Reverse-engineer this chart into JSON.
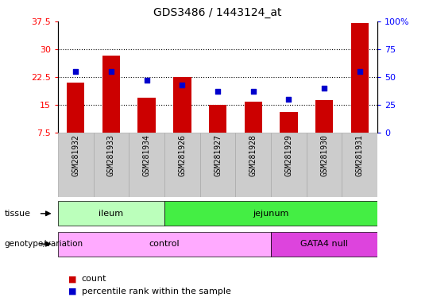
{
  "title": "GDS3486 / 1443124_at",
  "samples": [
    "GSM281932",
    "GSM281933",
    "GSM281934",
    "GSM281926",
    "GSM281927",
    "GSM281928",
    "GSM281929",
    "GSM281930",
    "GSM281931"
  ],
  "counts": [
    21.0,
    28.2,
    17.0,
    22.5,
    15.0,
    15.8,
    13.0,
    16.2,
    37.0
  ],
  "percentile_ranks": [
    55,
    55,
    47,
    43,
    37,
    37,
    30,
    40,
    55
  ],
  "ylim_left": [
    7.5,
    37.5
  ],
  "ylim_right": [
    0,
    100
  ],
  "yticks_left": [
    7.5,
    15.0,
    22.5,
    30.0,
    37.5
  ],
  "yticks_right": [
    0,
    25,
    50,
    75,
    100
  ],
  "ytick_labels_left": [
    "7.5",
    "15",
    "22.5",
    "30",
    "37.5"
  ],
  "ytick_labels_right": [
    "0",
    "25",
    "50",
    "75",
    "100%"
  ],
  "bar_color": "#cc0000",
  "dot_color": "#0000cc",
  "tissue_groups": [
    {
      "label": "ileum",
      "start": 0,
      "end": 3,
      "color": "#bbffbb"
    },
    {
      "label": "jejunum",
      "start": 3,
      "end": 9,
      "color": "#44ee44"
    }
  ],
  "genotype_groups": [
    {
      "label": "control",
      "start": 0,
      "end": 6,
      "color": "#ffaaff"
    },
    {
      "label": "GATA4 null",
      "start": 6,
      "end": 9,
      "color": "#dd44dd"
    }
  ],
  "legend_count_label": "count",
  "legend_pct_label": "percentile rank within the sample",
  "tissue_label": "tissue",
  "genotype_label": "genotype/variation",
  "bar_bottom": 7.5,
  "col_bg_color": "#cccccc",
  "col_border_color": "#aaaaaa"
}
